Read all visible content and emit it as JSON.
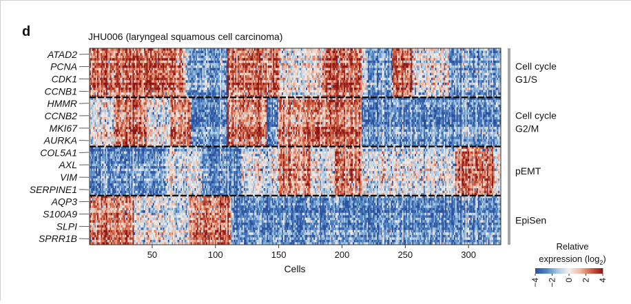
{
  "panel_label": "d",
  "chart_data": {
    "type": "heatmap",
    "title": "JHU006 (laryngeal squamous cell carcinoma)",
    "xlabel": "Cells",
    "ylabel": "",
    "xlim": [
      1,
      325
    ],
    "x_ticks": [
      50,
      100,
      150,
      200,
      250,
      300
    ],
    "n_cells": 325,
    "rows_per_program": 20,
    "programs": [
      {
        "name": "Cell cycle\nG1/S",
        "lines": [
          "Cell cycle",
          "G1/S"
        ],
        "gene_labels": [
          "ATAD2",
          "PCNA",
          "CDK1",
          "CCNB1"
        ],
        "high_intervals": [
          [
            1,
            75
          ],
          [
            110,
            150
          ],
          [
            185,
            215
          ],
          [
            240,
            255
          ]
        ],
        "low_intervals": [
          [
            78,
            110
          ],
          [
            220,
            250
          ],
          [
            285,
            325
          ]
        ]
      },
      {
        "name": "Cell cycle\nG2/M",
        "lines": [
          "Cell cycle",
          "G2/M"
        ],
        "gene_labels": [
          "HMMR",
          "CCNB2",
          "MKI67",
          "AURKA"
        ],
        "high_intervals": [
          [
            20,
            45
          ],
          [
            65,
            80
          ],
          [
            110,
            140
          ],
          [
            150,
            215
          ]
        ],
        "low_intervals": [
          [
            80,
            110
          ],
          [
            140,
            150
          ],
          [
            215,
            325
          ]
        ]
      },
      {
        "name": "pEMT",
        "lines": [
          "pEMT"
        ],
        "gene_labels": [
          "COL5A1",
          "AXL",
          "VIM",
          "SERPINE1"
        ],
        "high_intervals": [
          [
            150,
            175
          ],
          [
            195,
            215
          ],
          [
            290,
            320
          ]
        ],
        "low_intervals": [
          [
            1,
            60
          ],
          [
            90,
            120
          ]
        ]
      },
      {
        "name": "EpiSen",
        "lines": [
          "EpiSen"
        ],
        "gene_labels": [
          "AQP3",
          "S100A9",
          "SLPI",
          "SPRR1B"
        ],
        "high_intervals": [
          [
            1,
            35
          ],
          [
            80,
            112
          ]
        ],
        "low_intervals": [
          [
            112,
            325
          ]
        ]
      }
    ],
    "legend": {
      "title": "Relative expression (log2)",
      "title_lines": [
        "Relative",
        "expression (log",
        "2",
        ")"
      ],
      "ticks": [
        -4,
        -2,
        0,
        2,
        4
      ],
      "tick_labels": [
        "−4",
        "−2",
        "0",
        "2",
        "4"
      ],
      "range": [
        -4,
        4
      ]
    },
    "colormap": [
      "#2b4f9c",
      "#4f84c2",
      "#a9c9e3",
      "#f3efeb",
      "#f1b79f",
      "#cf5d40",
      "#8c1616"
    ]
  }
}
